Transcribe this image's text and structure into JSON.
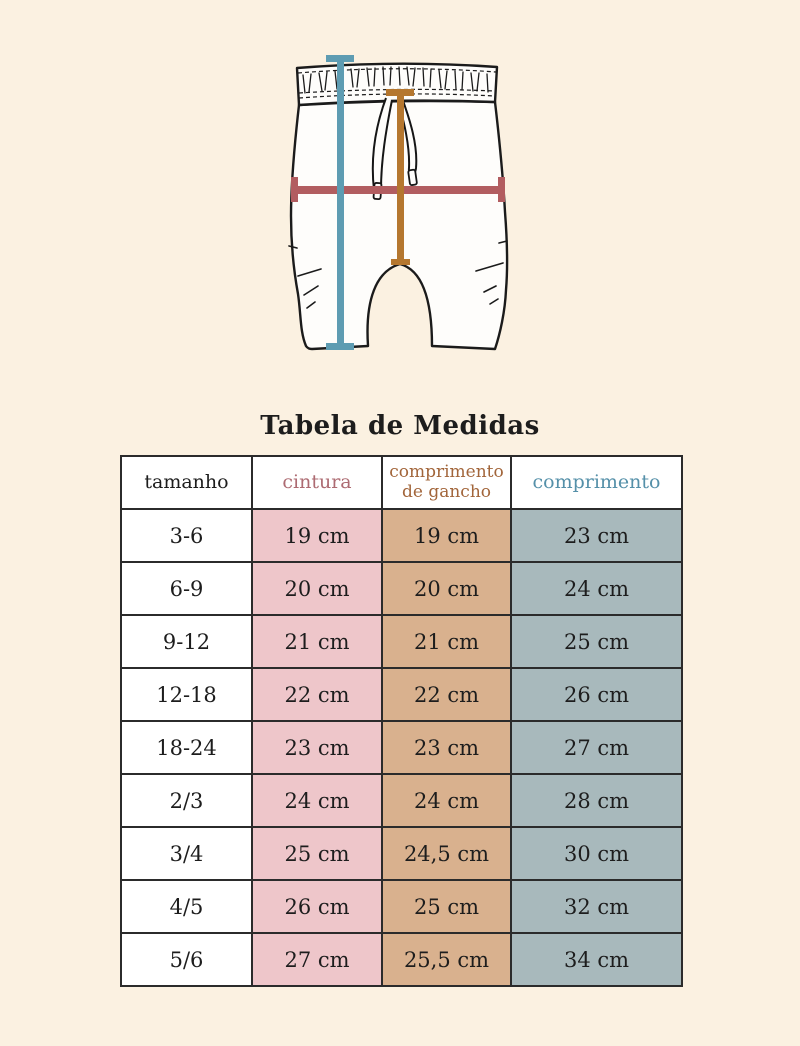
{
  "chart_data": {
    "type": "table",
    "title": "Tabela de Medidas",
    "units": "cm",
    "columns": [
      {
        "key": "tamanho",
        "label": "tamanho",
        "header_text": "#1d1d1d",
        "cell_bg": "#ffffff"
      },
      {
        "key": "cintura",
        "label": "cintura",
        "header_text": "#ad6b72",
        "cell_bg": "#eec6ca"
      },
      {
        "key": "gancho",
        "label": "comprimento de gancho",
        "header_text": "#a2653a",
        "cell_bg": "#d9b18e"
      },
      {
        "key": "comprimento",
        "label": "comprimento",
        "header_text": "#5590a9",
        "cell_bg": "#a8b9bc"
      }
    ],
    "rows": [
      [
        "3-6",
        "19 cm",
        "19 cm",
        "23 cm"
      ],
      [
        "6-9",
        "20 cm",
        "20 cm",
        "24 cm"
      ],
      [
        "9-12",
        "21 cm",
        "21 cm",
        "25 cm"
      ],
      [
        "12-18",
        "22 cm",
        "22 cm",
        "26 cm"
      ],
      [
        "18-24",
        "23 cm",
        "23 cm",
        "27 cm"
      ],
      [
        "2/3",
        "24 cm",
        "24 cm",
        "28 cm"
      ],
      [
        "3/4",
        "25 cm",
        "24,5 cm",
        "30 cm"
      ],
      [
        "4/5",
        "26 cm",
        "25 cm",
        "32 cm"
      ],
      [
        "5/6",
        "27 cm",
        "25,5 cm",
        "34 cm"
      ]
    ]
  },
  "diagram": {
    "subject": "baby harem shorts flat sketch with drawstring waistband",
    "measure_lines": [
      {
        "name": "cintura",
        "orientation": "horizontal",
        "color": "#b25d60"
      },
      {
        "name": "comprimento de gancho",
        "orientation": "vertical",
        "color": "#b5772f"
      },
      {
        "name": "comprimento",
        "orientation": "vertical",
        "color": "#5e9cb2"
      }
    ]
  },
  "colors": {
    "background": "#fbf1e1",
    "table_border": "#2b2b2b",
    "text": "#1d1d1d",
    "waist_line": "#b25d60",
    "inseam_line": "#b5772f",
    "length_line": "#5e9cb2"
  }
}
